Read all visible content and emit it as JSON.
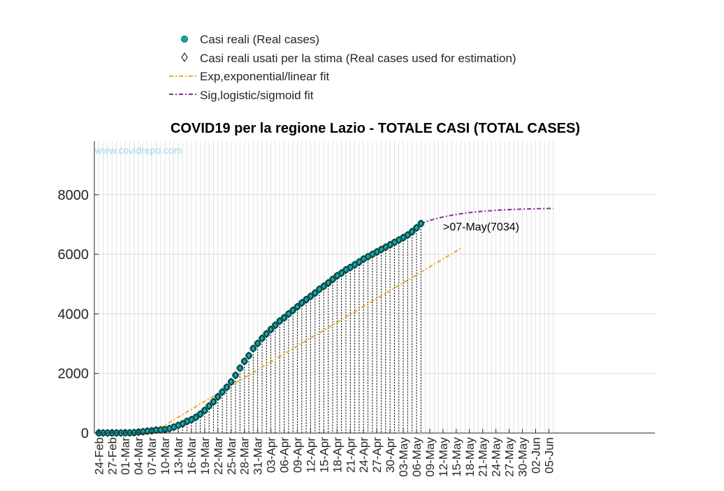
{
  "chart_data": {
    "type": "scatter",
    "title": "COVID19 per la regione Lazio - TOTALE CASI (TOTAL CASES)",
    "watermark": "www.covidrepo.com",
    "xlabel": "",
    "ylabel": "",
    "xlim": [
      "2020-02-23",
      "2020-06-29"
    ],
    "ylim": [
      0,
      9800
    ],
    "grid": true,
    "legend_position": "top",
    "y_ticks": [
      0,
      2000,
      4000,
      6000,
      8000
    ],
    "x_tick_labels": [
      "24-Feb",
      "27-Feb",
      "01-Mar",
      "04-Mar",
      "07-Mar",
      "10-Mar",
      "13-Mar",
      "16-Mar",
      "19-Mar",
      "22-Mar",
      "25-Mar",
      "28-Mar",
      "31-Mar",
      "03-Apr",
      "06-Apr",
      "09-Apr",
      "12-Apr",
      "15-Apr",
      "18-Apr",
      "21-Apr",
      "24-Apr",
      "27-Apr",
      "30-Apr",
      "03-May",
      "06-May",
      "09-May",
      "12-May",
      "15-May",
      "18-May",
      "21-May",
      "24-May",
      "27-May",
      "30-May",
      "02-Jun",
      "05-Jun"
    ],
    "annotation": ">07-May(7034)",
    "legend": [
      {
        "label": "Casi reali (Real cases)",
        "marker": "circle",
        "color": "#1aa6a6"
      },
      {
        "label": "Casi reali usati per la stima (Real cases used for estimation)",
        "marker": "diamond",
        "color": "#000000"
      },
      {
        "label": "Exp,exponential/linear fit",
        "line": "dash-dot",
        "color": "#e0b020"
      },
      {
        "label": "Sig,logistic/sigmoid fit",
        "line": "dash-dot",
        "color": "#7e2f8e"
      }
    ],
    "series": [
      {
        "name": "Casi reali (Real cases)",
        "x": [
          "24-Feb",
          "25-Feb",
          "26-Feb",
          "27-Feb",
          "28-Feb",
          "29-Feb",
          "01-Mar",
          "02-Mar",
          "03-Mar",
          "04-Mar",
          "05-Mar",
          "06-Mar",
          "07-Mar",
          "08-Mar",
          "09-Mar",
          "10-Mar",
          "11-Mar",
          "12-Mar",
          "13-Mar",
          "14-Mar",
          "15-Mar",
          "16-Mar",
          "17-Mar",
          "18-Mar",
          "19-Mar",
          "20-Mar",
          "21-Mar",
          "22-Mar",
          "23-Mar",
          "24-Mar",
          "25-Mar",
          "26-Mar",
          "27-Mar",
          "28-Mar",
          "29-Mar",
          "30-Mar",
          "31-Mar",
          "01-Apr",
          "02-Apr",
          "03-Apr",
          "04-Apr",
          "05-Apr",
          "06-Apr",
          "07-Apr",
          "08-Apr",
          "09-Apr",
          "10-Apr",
          "11-Apr",
          "12-Apr",
          "13-Apr",
          "14-Apr",
          "15-Apr",
          "16-Apr",
          "17-Apr",
          "18-Apr",
          "19-Apr",
          "20-Apr",
          "21-Apr",
          "22-Apr",
          "23-Apr",
          "24-Apr",
          "25-Apr",
          "26-Apr",
          "27-Apr",
          "28-Apr",
          "29-Apr",
          "30-Apr",
          "01-May",
          "02-May",
          "03-May",
          "04-May",
          "05-May",
          "06-May",
          "07-May"
        ],
        "y": [
          3,
          3,
          3,
          3,
          3,
          3,
          6,
          6,
          14,
          30,
          44,
          64,
          76,
          98,
          102,
          116,
          150,
          200,
          258,
          312,
          394,
          448,
          530,
          636,
          760,
          909,
          1050,
          1220,
          1380,
          1540,
          1720,
          1940,
          2180,
          2410,
          2600,
          2840,
          3010,
          3180,
          3330,
          3480,
          3620,
          3760,
          3870,
          4000,
          4120,
          4240,
          4370,
          4480,
          4590,
          4700,
          4830,
          4930,
          5040,
          5160,
          5280,
          5370,
          5480,
          5560,
          5650,
          5740,
          5840,
          5920,
          6000,
          6080,
          6160,
          6240,
          6320,
          6400,
          6480,
          6560,
          6650,
          6760,
          6890,
          7034
        ]
      }
    ],
    "estimation_range": [
      "24-Feb",
      "07-May"
    ],
    "fits": {
      "exponential_linear": {
        "x_start": "07-Mar",
        "y_start": 0,
        "slope_per_day": 88.5,
        "x_end": "16-May"
      },
      "logistic_sigmoid": {
        "x_start": "07-May",
        "x_end": "06-Jun",
        "y_end": 7540
      }
    }
  }
}
